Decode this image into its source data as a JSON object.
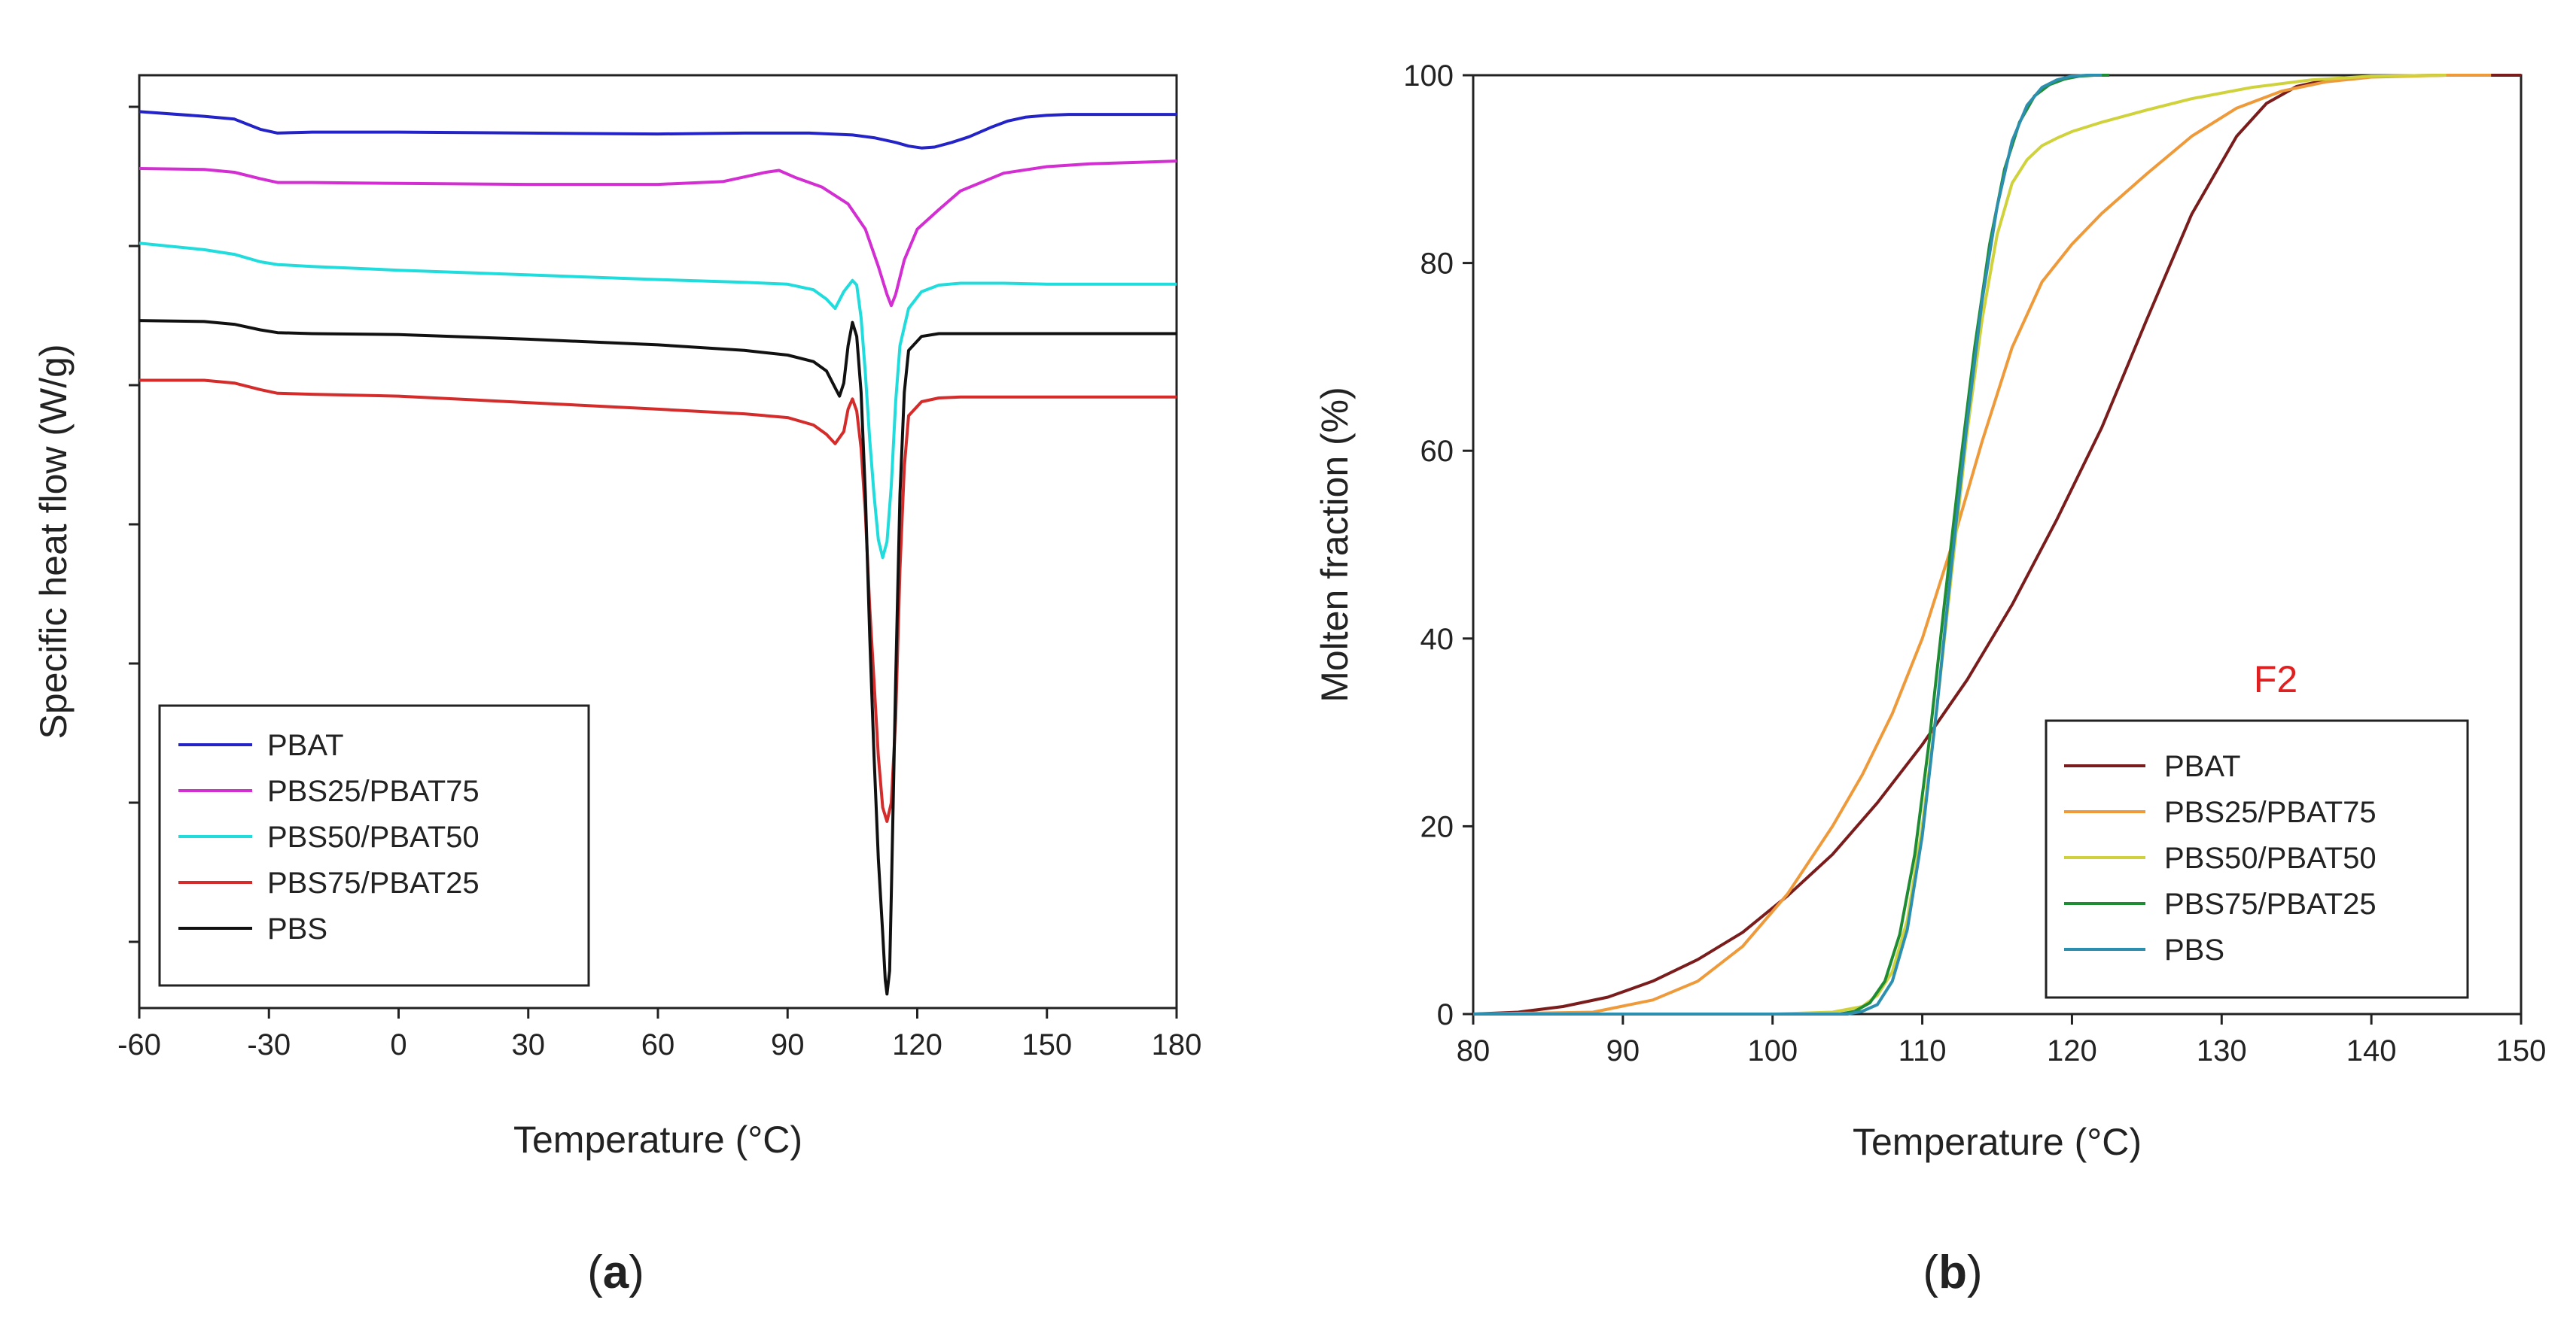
{
  "chart_data": [
    {
      "panel": "a",
      "type": "line",
      "title": "",
      "xlabel": "Temperature (°C)",
      "ylabel": "Specific heat flow (W/g)",
      "xlim": [
        -60,
        180
      ],
      "ylim": [
        0,
        100
      ],
      "xticks": [
        "-60",
        "-30",
        "0",
        "30",
        "60",
        "90",
        "120",
        "150",
        "180"
      ],
      "yticks_unlabeled": 7,
      "grid": false,
      "legend_position": "bottom-left",
      "caption_letter": "a",
      "series": [
        {
          "name": "PBAT",
          "color": "#2323c8",
          "x": [
            -60,
            -45,
            -38,
            -32,
            -28,
            -20,
            0,
            30,
            60,
            80,
            95,
            105,
            110,
            115,
            118,
            121,
            124,
            128,
            132,
            137,
            141,
            145,
            150,
            155,
            160,
            170,
            180
          ],
          "y": [
            96.1,
            95.6,
            95.3,
            94.2,
            93.8,
            93.9,
            93.9,
            93.8,
            93.7,
            93.8,
            93.8,
            93.6,
            93.3,
            92.8,
            92.4,
            92.2,
            92.3,
            92.8,
            93.4,
            94.4,
            95.1,
            95.5,
            95.7,
            95.8,
            95.8,
            95.8,
            95.8
          ]
        },
        {
          "name": "PBS25/PBAT75",
          "color": "#d22ed2",
          "x": [
            -60,
            -45,
            -38,
            -32,
            -28,
            -20,
            0,
            30,
            60,
            75,
            85,
            88,
            92,
            98,
            104,
            108,
            111,
            113,
            114,
            115,
            117,
            120,
            125,
            130,
            140,
            150,
            160,
            180
          ],
          "y": [
            90.0,
            89.9,
            89.6,
            88.9,
            88.5,
            88.5,
            88.4,
            88.3,
            88.3,
            88.6,
            89.6,
            89.8,
            89.0,
            88.0,
            86.2,
            83.5,
            79.5,
            76.5,
            75.3,
            76.5,
            80.2,
            83.5,
            85.6,
            87.6,
            89.5,
            90.2,
            90.5,
            90.8
          ]
        },
        {
          "name": "PBS50/PBAT50",
          "color": "#20dcdc",
          "x": [
            -60,
            -45,
            -38,
            -32,
            -28,
            -20,
            0,
            30,
            60,
            80,
            90,
            96,
            99,
            101,
            103,
            105,
            106,
            107,
            108,
            109,
            110,
            111,
            112,
            113,
            114,
            115,
            116,
            118,
            121,
            125,
            130,
            140,
            150,
            165,
            180
          ],
          "y": [
            82.0,
            81.3,
            80.8,
            80.0,
            79.7,
            79.5,
            79.1,
            78.6,
            78.1,
            77.8,
            77.6,
            77.0,
            76.0,
            75.0,
            76.8,
            78.0,
            77.5,
            74.0,
            68.0,
            61.0,
            55.0,
            50.2,
            48.3,
            50.0,
            56.0,
            65.0,
            71.0,
            75.0,
            76.8,
            77.5,
            77.7,
            77.7,
            77.6,
            77.6,
            77.6
          ]
        },
        {
          "name": "PBS75/PBAT25",
          "color": "#d42b2b",
          "x": [
            -60,
            -45,
            -38,
            -32,
            -28,
            -20,
            0,
            30,
            60,
            80,
            90,
            96,
            99,
            101,
            103,
            104,
            105,
            106,
            107,
            108,
            109,
            110,
            111,
            112,
            113,
            114,
            115,
            116,
            117,
            118,
            121,
            125,
            130,
            150,
            180
          ],
          "y": [
            67.3,
            67.3,
            67.0,
            66.3,
            65.9,
            65.8,
            65.6,
            64.9,
            64.2,
            63.7,
            63.3,
            62.5,
            61.5,
            60.5,
            61.8,
            64.2,
            65.3,
            64.0,
            60.0,
            53.0,
            43.0,
            35.0,
            27.0,
            21.5,
            20.0,
            22.0,
            31.0,
            47.0,
            58.0,
            63.5,
            65.0,
            65.4,
            65.5,
            65.5,
            65.5
          ]
        },
        {
          "name": "PBS",
          "color": "#111111",
          "x": [
            -60,
            -45,
            -38,
            -32,
            -28,
            -20,
            0,
            30,
            60,
            80,
            90,
            96,
            99,
            101,
            102,
            103,
            104,
            105,
            106,
            107,
            108,
            109,
            110,
            111,
            112,
            112.6,
            113,
            113.6,
            114,
            115,
            116,
            117,
            118,
            121,
            125,
            130,
            150,
            180
          ],
          "y": [
            73.7,
            73.6,
            73.3,
            72.7,
            72.4,
            72.3,
            72.2,
            71.7,
            71.1,
            70.5,
            70.0,
            69.3,
            68.3,
            66.5,
            65.6,
            67.0,
            71.0,
            73.5,
            72.0,
            66.0,
            55.0,
            40.0,
            27.0,
            16.0,
            8.0,
            3.0,
            1.5,
            4.0,
            12.0,
            35.0,
            55.0,
            66.0,
            70.5,
            72.0,
            72.3,
            72.3,
            72.3,
            72.3
          ]
        }
      ]
    },
    {
      "panel": "b",
      "type": "line",
      "title": "",
      "xlabel": "Temperature (°C)",
      "ylabel": "Molten fraction (%)",
      "xlim": [
        80,
        150
      ],
      "ylim": [
        0,
        100
      ],
      "xticks": [
        "80",
        "90",
        "100",
        "110",
        "120",
        "130",
        "140",
        "150"
      ],
      "yticks": [
        "0",
        "20",
        "40",
        "60",
        "80",
        "100"
      ],
      "grid": false,
      "annotation": "F2",
      "annotation_color": "#e02020",
      "legend_position": "bottom-right",
      "caption_letter": "b",
      "series": [
        {
          "name": "PBAT",
          "color": "#7a1c1c",
          "x": [
            80,
            83,
            86,
            89,
            92,
            95,
            98,
            101,
            104,
            107,
            110,
            113,
            116,
            119,
            122,
            125,
            128,
            131,
            133,
            135,
            137,
            140,
            145,
            150
          ],
          "y": [
            0,
            0.2,
            0.8,
            1.8,
            3.5,
            5.8,
            8.7,
            12.6,
            17.0,
            22.5,
            28.7,
            35.6,
            43.6,
            52.7,
            62.5,
            74.0,
            85.2,
            93.5,
            97.0,
            98.8,
            99.5,
            99.9,
            100,
            100
          ]
        },
        {
          "name": "PBS25/PBAT75",
          "color": "#ef9a3a",
          "x": [
            80,
            88,
            92,
            95,
            98,
            101,
            104,
            106,
            108,
            110,
            112,
            114,
            116,
            118,
            120,
            122,
            125,
            128,
            131,
            134,
            137,
            140,
            145,
            148
          ],
          "y": [
            0,
            0.2,
            1.5,
            3.5,
            7.2,
            12.8,
            20.0,
            25.5,
            32.0,
            40.0,
            50.0,
            61.0,
            71.0,
            78.0,
            82.0,
            85.3,
            89.5,
            93.5,
            96.5,
            98.3,
            99.3,
            99.8,
            100,
            100
          ]
        },
        {
          "name": "PBS50/PBAT50",
          "color": "#cfd23a",
          "x": [
            80,
            100,
            104,
            106,
            107,
            108,
            109,
            110,
            111,
            112,
            113,
            114,
            115,
            116,
            117,
            118,
            119,
            120,
            122,
            125,
            128,
            132,
            136,
            140,
            145
          ],
          "y": [
            0,
            0,
            0.2,
            0.8,
            2.0,
            4.5,
            10.0,
            20.0,
            33.0,
            47.5,
            62.0,
            74.0,
            83.0,
            88.5,
            91.0,
            92.5,
            93.3,
            94.0,
            95.0,
            96.3,
            97.5,
            98.7,
            99.5,
            99.9,
            100
          ]
        },
        {
          "name": "PBS75/PBAT25",
          "color": "#1e8c32",
          "x": [
            80,
            104.5,
            105.5,
            106.5,
            107.5,
            108.5,
            109.5,
            110.5,
            111.5,
            112.5,
            113.5,
            114.5,
            115.5,
            116.5,
            117.5,
            118.5,
            119.5,
            120.5,
            121.5,
            122.5
          ],
          "y": [
            0,
            0,
            0.3,
            1.2,
            3.5,
            8.5,
            17.0,
            29.5,
            44.0,
            58.0,
            71.0,
            82.0,
            90.0,
            95.0,
            97.8,
            99.0,
            99.6,
            99.9,
            100,
            100
          ]
        },
        {
          "name": "PBS",
          "color": "#2c8fb0",
          "x": [
            80,
            105,
            106,
            107,
            108,
            109,
            110,
            111,
            112,
            113,
            114,
            115,
            116,
            117,
            118,
            119,
            120,
            121,
            122
          ],
          "y": [
            0,
            0,
            0.3,
            1.0,
            3.5,
            9.0,
            19.0,
            33.0,
            48.5,
            63.0,
            76.0,
            86.0,
            93.0,
            96.8,
            98.7,
            99.5,
            99.9,
            100,
            100
          ]
        }
      ]
    }
  ]
}
